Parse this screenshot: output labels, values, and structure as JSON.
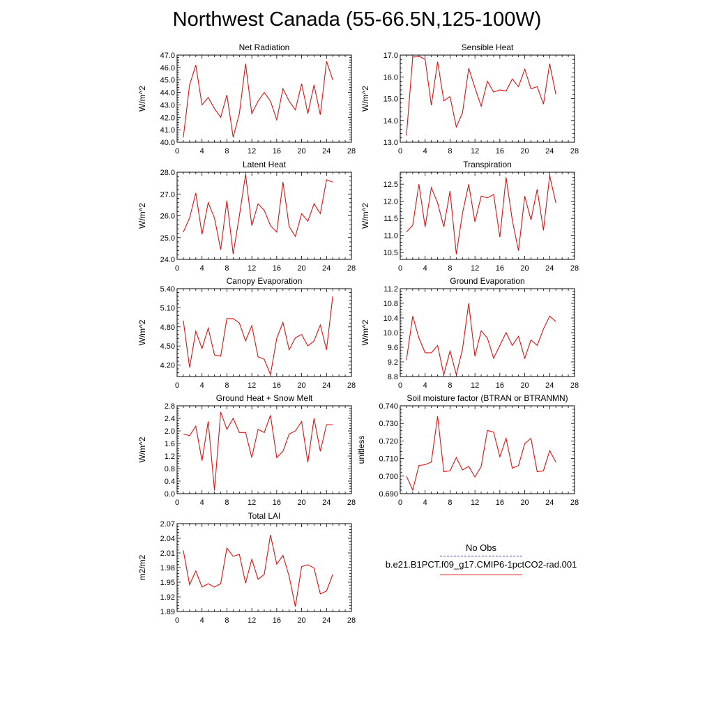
{
  "figure": {
    "title": "Northwest Canada (55-66.5N,125-100W)"
  },
  "legend": {
    "obs_label": "No Obs",
    "model_label": "b.e21.B1PCT.f09_g17.CMIP6-1pctCO2-rad.001",
    "obs_color": "#3b3bbf",
    "model_color": "#e01010"
  },
  "chart_data": [
    {
      "type": "line",
      "title": "Net Radiation",
      "ylabel": "W/m^2",
      "xlim": [
        0,
        28
      ],
      "xticks": [
        0,
        4,
        8,
        12,
        16,
        20,
        24,
        28
      ],
      "ylim": [
        40.0,
        47.0
      ],
      "yticks": [
        40.0,
        41.0,
        42.0,
        43.0,
        44.0,
        45.0,
        46.0,
        47.0
      ],
      "ytick_labels": [
        "40.0",
        "41.0",
        "42.0",
        "43.0",
        "44.0",
        "45.0",
        "46.0",
        "47.0"
      ],
      "series": [
        {
          "x": [
            1,
            2,
            3,
            4,
            5,
            6,
            7,
            8,
            9,
            10,
            11,
            12,
            13,
            14,
            15,
            16,
            17,
            18,
            19,
            20,
            21,
            22,
            23,
            24,
            25
          ],
          "values": [
            40.4,
            44.6,
            46.2,
            43.0,
            43.6,
            42.7,
            42.0,
            43.8,
            40.4,
            42.3,
            46.3,
            42.3,
            43.3,
            44.0,
            43.3,
            41.8,
            44.3,
            43.3,
            42.6,
            44.7,
            42.3,
            44.6,
            42.2,
            46.5,
            45.0
          ]
        }
      ]
    },
    {
      "type": "line",
      "title": "Sensible Heat",
      "ylabel": "W/m^2",
      "xlim": [
        0,
        28
      ],
      "xticks": [
        0,
        4,
        8,
        12,
        16,
        20,
        24,
        28
      ],
      "ylim": [
        13.0,
        17.0
      ],
      "yticks": [
        13.0,
        14.0,
        15.0,
        16.0,
        17.0
      ],
      "ytick_labels": [
        "13.0",
        "14.0",
        "15.0",
        "16.0",
        "17.0"
      ],
      "series": [
        {
          "x": [
            1,
            2,
            3,
            4,
            5,
            6,
            7,
            8,
            9,
            10,
            11,
            12,
            13,
            14,
            15,
            16,
            17,
            18,
            19,
            20,
            21,
            22,
            23,
            24,
            25
          ],
          "values": [
            13.3,
            16.9,
            16.95,
            16.8,
            14.7,
            16.7,
            14.9,
            15.1,
            13.7,
            14.35,
            16.4,
            15.5,
            14.65,
            15.8,
            15.3,
            15.4,
            15.35,
            15.9,
            15.55,
            16.35,
            15.45,
            15.55,
            14.75,
            16.6,
            15.2
          ]
        }
      ]
    },
    {
      "type": "line",
      "title": "Latent Heat",
      "ylabel": "W/m^2",
      "xlim": [
        0,
        28
      ],
      "xticks": [
        0,
        4,
        8,
        12,
        16,
        20,
        24,
        28
      ],
      "ylim": [
        24.0,
        28.0
      ],
      "yticks": [
        24.0,
        25.0,
        26.0,
        27.0,
        28.0
      ],
      "ytick_labels": [
        "24.0",
        "25.0",
        "26.0",
        "27.0",
        "28.0"
      ],
      "series": [
        {
          "x": [
            1,
            2,
            3,
            4,
            5,
            6,
            7,
            8,
            9,
            10,
            11,
            12,
            13,
            14,
            15,
            16,
            17,
            18,
            19,
            20,
            21,
            22,
            23,
            24,
            25
          ],
          "values": [
            25.25,
            25.9,
            27.05,
            25.15,
            26.6,
            25.9,
            24.45,
            26.7,
            24.25,
            26.0,
            27.9,
            25.55,
            26.55,
            26.25,
            25.55,
            25.25,
            27.55,
            25.5,
            25.05,
            26.1,
            25.75,
            26.55,
            26.1,
            27.65,
            27.55
          ]
        }
      ]
    },
    {
      "type": "line",
      "title": "Transpiration",
      "ylabel": "W/m^2",
      "xlim": [
        0,
        28
      ],
      "xticks": [
        0,
        4,
        8,
        12,
        16,
        20,
        24,
        28
      ],
      "ylim": [
        10.3,
        12.85
      ],
      "yticks": [
        10.5,
        11.0,
        11.5,
        12.0,
        12.5
      ],
      "ytick_labels": [
        "10.5",
        "11.0",
        "11.5",
        "12.0",
        "12.5"
      ],
      "series": [
        {
          "x": [
            1,
            2,
            3,
            4,
            5,
            6,
            7,
            8,
            9,
            10,
            11,
            12,
            13,
            14,
            15,
            16,
            17,
            18,
            19,
            20,
            21,
            22,
            23,
            24,
            25
          ],
          "values": [
            11.1,
            11.3,
            12.5,
            11.25,
            12.4,
            11.95,
            11.25,
            12.3,
            10.45,
            11.65,
            12.5,
            11.4,
            12.15,
            12.1,
            12.2,
            10.95,
            12.7,
            11.45,
            10.55,
            12.15,
            11.45,
            12.35,
            11.15,
            12.75,
            11.95
          ]
        }
      ]
    },
    {
      "type": "line",
      "title": "Canopy Evaporation",
      "ylabel": "W/m^2",
      "xlim": [
        0,
        28
      ],
      "xticks": [
        0,
        4,
        8,
        12,
        16,
        20,
        24,
        28
      ],
      "ylim": [
        4.02,
        5.4
      ],
      "yticks": [
        4.2,
        4.5,
        4.8,
        5.1,
        5.4
      ],
      "ytick_labels": [
        "4.20",
        "4.50",
        "4.80",
        "5.10",
        "5.40"
      ],
      "series": [
        {
          "x": [
            1,
            2,
            3,
            4,
            5,
            6,
            7,
            8,
            9,
            10,
            11,
            12,
            13,
            14,
            15,
            16,
            17,
            18,
            19,
            20,
            21,
            22,
            23,
            24,
            25
          ],
          "values": [
            4.9,
            4.16,
            4.73,
            4.46,
            4.78,
            4.36,
            4.34,
            4.93,
            4.93,
            4.86,
            4.58,
            4.82,
            4.33,
            4.29,
            4.05,
            4.62,
            4.87,
            4.44,
            4.63,
            4.68,
            4.5,
            4.58,
            4.83,
            4.44,
            5.28
          ]
        }
      ]
    },
    {
      "type": "line",
      "title": "Ground Evaporation",
      "ylabel": "W/m^2",
      "xlim": [
        0,
        28
      ],
      "xticks": [
        0,
        4,
        8,
        12,
        16,
        20,
        24,
        28
      ],
      "ylim": [
        8.8,
        11.2
      ],
      "yticks": [
        8.8,
        9.2,
        9.6,
        10.0,
        10.4,
        10.8,
        11.2
      ],
      "ytick_labels": [
        "8.8",
        "9.2",
        "9.6",
        "10.0",
        "10.4",
        "10.8",
        "11.2"
      ],
      "series": [
        {
          "x": [
            1,
            2,
            3,
            4,
            5,
            6,
            7,
            8,
            9,
            10,
            11,
            12,
            13,
            14,
            15,
            16,
            17,
            18,
            19,
            20,
            21,
            22,
            23,
            24,
            25
          ],
          "values": [
            9.25,
            10.45,
            9.85,
            9.45,
            9.45,
            9.65,
            8.85,
            9.5,
            8.85,
            9.55,
            10.8,
            9.35,
            10.05,
            9.85,
            9.3,
            9.65,
            10.0,
            9.65,
            9.9,
            9.3,
            9.8,
            9.65,
            10.1,
            10.45,
            10.3
          ]
        }
      ]
    },
    {
      "type": "line",
      "title": "Ground Heat + Snow Melt",
      "ylabel": "W/m^2",
      "xlim": [
        0,
        28
      ],
      "xticks": [
        0,
        4,
        8,
        12,
        16,
        20,
        24,
        28
      ],
      "ylim": [
        0.0,
        2.8
      ],
      "yticks": [
        0.0,
        0.4,
        0.8,
        1.2,
        1.6,
        2.0,
        2.4,
        2.8
      ],
      "ytick_labels": [
        "0.0",
        "0.4",
        "0.8",
        "1.2",
        "1.6",
        "2.0",
        "2.4",
        "2.8"
      ],
      "series": [
        {
          "x": [
            1,
            2,
            3,
            4,
            5,
            6,
            7,
            8,
            9,
            10,
            11,
            12,
            13,
            14,
            15,
            16,
            17,
            18,
            19,
            20,
            21,
            22,
            23,
            24,
            25
          ],
          "values": [
            1.9,
            1.85,
            2.15,
            1.05,
            2.3,
            0.1,
            2.6,
            2.05,
            2.4,
            1.95,
            1.95,
            1.15,
            2.05,
            1.95,
            2.5,
            1.15,
            1.35,
            1.9,
            2.0,
            2.3,
            1.0,
            2.4,
            1.35,
            2.2,
            2.2
          ]
        }
      ]
    },
    {
      "type": "line",
      "title": "Soil moisture factor (BTRAN or BTRANMN)",
      "ylabel": "unitless",
      "xlim": [
        0,
        28
      ],
      "xticks": [
        0,
        4,
        8,
        12,
        16,
        20,
        24,
        28
      ],
      "ylim": [
        0.69,
        0.74
      ],
      "yticks": [
        0.69,
        0.7,
        0.71,
        0.72,
        0.73,
        0.74
      ],
      "ytick_labels": [
        "0.690",
        "0.700",
        "0.710",
        "0.720",
        "0.730",
        "0.740"
      ],
      "series": [
        {
          "x": [
            1,
            2,
            3,
            4,
            5,
            6,
            7,
            8,
            9,
            10,
            11,
            12,
            13,
            14,
            15,
            16,
            17,
            18,
            19,
            20,
            21,
            22,
            23,
            24,
            25
          ],
          "values": [
            0.7,
            0.692,
            0.706,
            0.7065,
            0.708,
            0.734,
            0.7025,
            0.703,
            0.7105,
            0.7035,
            0.7055,
            0.6995,
            0.7055,
            0.726,
            0.725,
            0.711,
            0.7215,
            0.7045,
            0.706,
            0.7185,
            0.7215,
            0.7025,
            0.703,
            0.7145,
            0.708
          ]
        }
      ]
    },
    {
      "type": "line",
      "title": "Total LAI",
      "ylabel": "m2/m2",
      "xlim": [
        0,
        28
      ],
      "xticks": [
        0,
        4,
        8,
        12,
        16,
        20,
        24,
        28
      ],
      "ylim": [
        1.89,
        2.07
      ],
      "yticks": [
        1.89,
        1.92,
        1.95,
        1.98,
        2.01,
        2.04,
        2.07
      ],
      "ytick_labels": [
        "1.89",
        "1.92",
        "1.95",
        "1.98",
        "2.01",
        "2.04",
        "2.07"
      ],
      "series": [
        {
          "x": [
            1,
            2,
            3,
            4,
            5,
            6,
            7,
            8,
            9,
            10,
            11,
            12,
            13,
            14,
            15,
            16,
            17,
            18,
            19,
            20,
            21,
            22,
            23,
            24,
            25
          ],
          "values": [
            2.015,
            1.945,
            1.973,
            1.94,
            1.947,
            1.94,
            1.947,
            2.02,
            2.003,
            2.007,
            1.948,
            1.997,
            1.956,
            1.966,
            2.047,
            1.987,
            2.005,
            1.962,
            1.9,
            1.982,
            1.986,
            1.979,
            1.926,
            1.932,
            1.966
          ]
        }
      ]
    }
  ]
}
